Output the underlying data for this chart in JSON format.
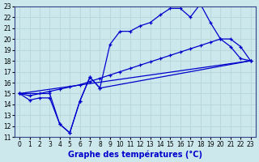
{
  "xlabel": "Graphe des températures (°C)",
  "xlim": [
    -0.5,
    23.5
  ],
  "ylim": [
    11,
    23
  ],
  "xticks": [
    0,
    1,
    2,
    3,
    4,
    5,
    6,
    7,
    8,
    9,
    10,
    11,
    12,
    13,
    14,
    15,
    16,
    17,
    18,
    19,
    20,
    21,
    22,
    23
  ],
  "yticks": [
    11,
    12,
    13,
    14,
    15,
    16,
    17,
    18,
    19,
    20,
    21,
    22,
    23
  ],
  "bg_color": "#cce8ed",
  "grid_color": "#b8d8dd",
  "line_color": "#0000cc",
  "line1_x": [
    0,
    1,
    2,
    3,
    4,
    5,
    6,
    7,
    8,
    9,
    10,
    11,
    12,
    13,
    14,
    15,
    16,
    17,
    18,
    19,
    20,
    21,
    22,
    23
  ],
  "line1_y": [
    15.0,
    14.4,
    14.6,
    14.6,
    12.2,
    11.4,
    14.3,
    16.5,
    15.5,
    19.5,
    20.7,
    20.7,
    21.2,
    21.5,
    22.2,
    22.8,
    22.8,
    22.0,
    23.2,
    21.5,
    20.0,
    19.3,
    18.2,
    18.0
  ],
  "line2_x": [
    0,
    1,
    2,
    3,
    4,
    5,
    6,
    7,
    8,
    9,
    10,
    11,
    12,
    13,
    14,
    15,
    16,
    17,
    18,
    19,
    20,
    21,
    22,
    23
  ],
  "line2_y": [
    15.0,
    14.8,
    15.0,
    15.2,
    15.4,
    15.6,
    15.8,
    16.1,
    16.4,
    16.7,
    17.0,
    17.3,
    17.6,
    17.9,
    18.2,
    18.5,
    18.8,
    19.1,
    19.4,
    19.7,
    20.0,
    20.0,
    19.3,
    18.0
  ],
  "line3_x": [
    0,
    3,
    4,
    5,
    6,
    7,
    8,
    23
  ],
  "line3_y": [
    15.0,
    15.0,
    12.2,
    11.4,
    14.3,
    16.5,
    15.5,
    18.0
  ],
  "line4_x": [
    0,
    23
  ],
  "line4_y": [
    15.0,
    18.0
  ],
  "tick_fontsize": 5.5,
  "label_fontsize": 7
}
